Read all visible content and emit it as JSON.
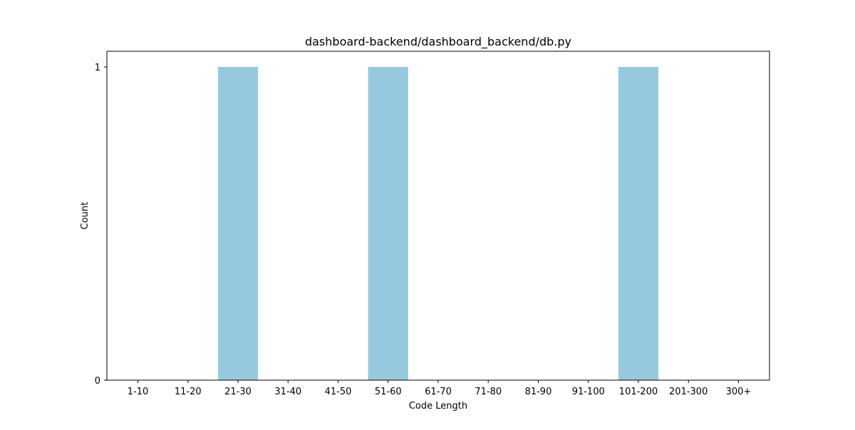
{
  "chart_data": {
    "type": "bar",
    "title": "dashboard-backend/dashboard_backend/db.py",
    "xlabel": "Code Length",
    "ylabel": "Count",
    "categories": [
      "1-10",
      "11-20",
      "21-30",
      "31-40",
      "41-50",
      "51-60",
      "61-70",
      "71-80",
      "81-90",
      "91-100",
      "101-200",
      "201-300",
      "300+"
    ],
    "values": [
      0,
      0,
      1,
      0,
      0,
      1,
      0,
      0,
      0,
      0,
      1,
      0,
      0
    ],
    "ylim": [
      0,
      1
    ],
    "yticks": [
      0,
      1
    ],
    "bar_color": "#96c9dd",
    "grid": false,
    "legend": "none"
  }
}
